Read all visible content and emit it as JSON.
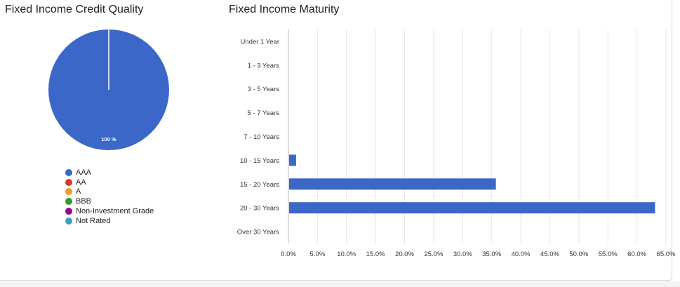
{
  "credit_quality": {
    "title": "Fixed Income Credit Quality",
    "chart_data": {
      "type": "pie",
      "title": "Fixed Income Credit Quality",
      "slices": [
        {
          "name": "AAA",
          "value": 100,
          "color": "#3b67c8"
        },
        {
          "name": "AA",
          "value": 0,
          "color": "#d3392c"
        },
        {
          "name": "A",
          "value": 0,
          "color": "#f39a2b"
        },
        {
          "name": "BBB",
          "value": 0,
          "color": "#2f9a2f"
        },
        {
          "name": "Non-Investment Grade",
          "value": 0,
          "color": "#990099"
        },
        {
          "name": "Not Rated",
          "value": 0,
          "color": "#3d9fc4"
        }
      ],
      "slice_label": "100 %",
      "legend_placement": "bottom"
    }
  },
  "maturity": {
    "title": "Fixed Income Maturity",
    "chart_data": {
      "type": "bar",
      "orientation": "horizontal",
      "title": "Fixed Income Maturity",
      "categories": [
        "Under 1 Year",
        "1 - 3 Years",
        "3 - 5 Years",
        "5 - 7 Years",
        "7 - 10 Years",
        "10 - 15 Years",
        "15 - 20 Years",
        "20 - 30 Years",
        "Over 30 Years"
      ],
      "values": [
        0,
        0,
        0,
        0,
        0,
        1.2,
        35.6,
        63.0,
        0
      ],
      "xlim": [
        0,
        65
      ],
      "x_ticks": [
        "0.0%",
        "5.0%",
        "10.0%",
        "15.0%",
        "20.0%",
        "25.0%",
        "30.0%",
        "35.0%",
        "40.0%",
        "45.0%",
        "50.0%",
        "55.0%",
        "60.0%",
        "65.0%"
      ],
      "grid": true,
      "bar_color": "#3b67c8"
    }
  }
}
